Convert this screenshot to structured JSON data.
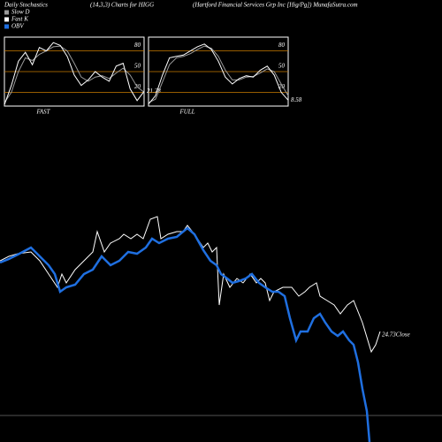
{
  "header": {
    "title": "Daily Stochastics",
    "subtitle": "(14,3,3) Charts for HIGG",
    "source": "(Hartford Financial Services Grp Inc [Hig/Pg]) MunafaSutra.com"
  },
  "chart_data": [
    {
      "type": "line",
      "title": "FAST",
      "last_label": 21.28,
      "x": [
        0,
        1,
        2,
        3,
        4,
        5,
        6,
        7,
        8,
        9,
        10,
        11,
        12,
        13,
        14,
        15,
        16,
        17,
        18,
        19,
        20
      ],
      "xlim": [
        0,
        20
      ],
      "ylim": [
        0,
        100
      ],
      "yticks": [
        80,
        50,
        20
      ],
      "grid": true,
      "series": [
        {
          "name": "Slow D",
          "color": "#9a9a9a",
          "values": [
            5,
            20,
            50,
            70,
            66,
            75,
            80,
            86,
            87,
            80,
            62,
            42,
            36,
            42,
            44,
            40,
            48,
            55,
            45,
            28,
            20
          ]
        },
        {
          "name": "Fast K",
          "color": "#ffffff",
          "values": [
            2,
            30,
            65,
            78,
            60,
            85,
            80,
            92,
            88,
            72,
            45,
            30,
            38,
            50,
            42,
            36,
            58,
            62,
            25,
            8,
            21.28
          ]
        }
      ]
    },
    {
      "type": "line",
      "title": "FULL",
      "last_label": 8.58,
      "x": [
        0,
        1,
        2,
        3,
        4,
        5,
        6,
        7,
        8,
        9,
        10,
        11,
        12,
        13,
        14,
        15,
        16,
        17,
        18,
        19,
        20
      ],
      "xlim": [
        0,
        20
      ],
      "ylim": [
        0,
        100
      ],
      "yticks": [
        80,
        50,
        20
      ],
      "grid": true,
      "series": [
        {
          "color": "#9a9a9a",
          "values": [
            5,
            10,
            35,
            60,
            70,
            72,
            76,
            82,
            87,
            84,
            72,
            52,
            38,
            38,
            42,
            43,
            48,
            54,
            50,
            32,
            15
          ]
        },
        {
          "color": "#ffffff",
          "values": [
            3,
            15,
            45,
            70,
            72,
            74,
            80,
            86,
            90,
            82,
            65,
            42,
            32,
            40,
            44,
            42,
            52,
            58,
            45,
            20,
            8.58
          ]
        }
      ]
    },
    {
      "type": "line",
      "annotation": "24.73Close",
      "xlim": [
        0,
        500
      ],
      "ylim": [
        0,
        500
      ],
      "series": [
        {
          "color": "#ffffff",
          "x": [
            0,
            10,
            20,
            35,
            45,
            55,
            65,
            70,
            75,
            85,
            95,
            105,
            110,
            118,
            125,
            135,
            140,
            148,
            155,
            162,
            170,
            178,
            182,
            190,
            200,
            207,
            212,
            220,
            230,
            235,
            240,
            245,
            248,
            253,
            260,
            268,
            275,
            283,
            290,
            295,
            300,
            305,
            310,
            320,
            330,
            338,
            345,
            350,
            358,
            362,
            370,
            378,
            385,
            393,
            400,
            410,
            420,
            425,
            430
          ],
          "values": [
            205,
            210,
            213,
            215,
            205,
            190,
            175,
            190,
            180,
            195,
            205,
            215,
            238,
            215,
            225,
            230,
            235,
            230,
            235,
            230,
            252,
            255,
            230,
            235,
            238,
            238,
            245,
            235,
            220,
            225,
            215,
            220,
            155,
            190,
            175,
            185,
            180,
            190,
            180,
            185,
            180,
            160,
            170,
            175,
            175,
            165,
            170,
            175,
            180,
            165,
            160,
            155,
            145,
            155,
            160,
            135,
            102,
            110,
            125
          ]
        },
        {
          "name": "OBV",
          "color": "#1f6fe0",
          "x": [
            0,
            10,
            20,
            35,
            45,
            55,
            62,
            68,
            75,
            85,
            95,
            105,
            115,
            125,
            135,
            145,
            155,
            165,
            172,
            180,
            190,
            200,
            212,
            220,
            230,
            238,
            245,
            250,
            257,
            263,
            270,
            278,
            285,
            293,
            300,
            308,
            315,
            322,
            328,
            335,
            340,
            348,
            355,
            362,
            368,
            375,
            382,
            388,
            395,
            400,
            405,
            410,
            415,
            418
          ],
          "values": [
            203,
            207,
            212,
            220,
            210,
            200,
            190,
            170,
            175,
            178,
            190,
            195,
            210,
            200,
            205,
            215,
            213,
            220,
            230,
            225,
            230,
            232,
            242,
            235,
            217,
            205,
            200,
            190,
            185,
            180,
            182,
            185,
            190,
            180,
            175,
            170,
            170,
            165,
            140,
            115,
            125,
            125,
            140,
            145,
            135,
            125,
            120,
            125,
            115,
            110,
            90,
            60,
            35,
            0
          ]
        }
      ]
    }
  ]
}
